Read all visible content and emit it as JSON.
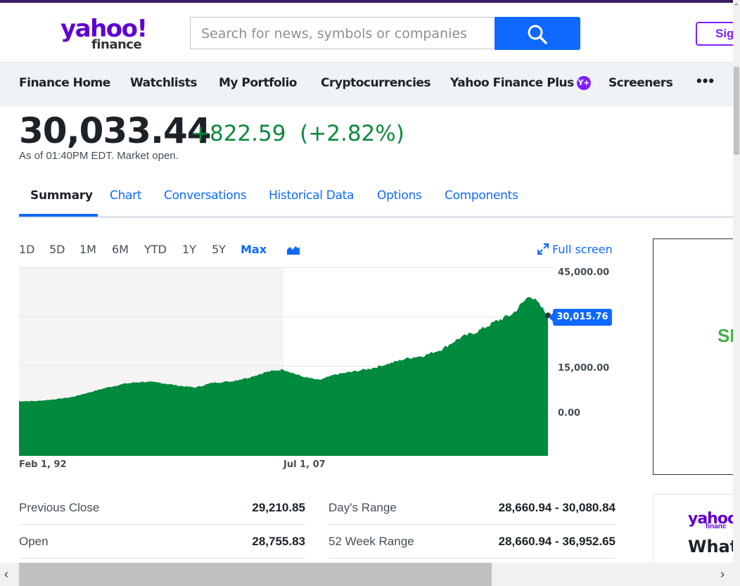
{
  "header": {
    "logo_main": "yahoo!",
    "logo_sub": "finance",
    "search_placeholder": "Search for news, symbols or companies",
    "sign_in_label": "Sig"
  },
  "nav": {
    "items": [
      "Finance Home",
      "Watchlists",
      "My Portfolio",
      "Cryptocurrencies",
      "Yahoo Finance Plus",
      "Screeners"
    ],
    "plus_badge": "Y+",
    "more": "•••"
  },
  "quote": {
    "price": "30,033.44",
    "change": "+822.59",
    "change_pct": "(+2.82%)",
    "as_of": "As of 01:40PM EDT. Market open."
  },
  "tabs": [
    "Summary",
    "Chart",
    "Conversations",
    "Historical Data",
    "Options",
    "Components"
  ],
  "ranges": [
    "1D",
    "5D",
    "1M",
    "6M",
    "YTD",
    "1Y",
    "5Y",
    "Max"
  ],
  "active_range": "Max",
  "fullscreen_label": "Full screen",
  "colors": {
    "accent": "#0f69ff",
    "positive": "#0c8a3e",
    "area_fill": "#008a3e",
    "brand": "#6001d2"
  },
  "chart_data": {
    "type": "area",
    "y_ticks": [
      "45,000.00",
      "15,000.00",
      "0.00"
    ],
    "x_ticks": [
      "Feb 1, 92",
      "Jul 1, 07"
    ],
    "last_value": "30,015.76",
    "series": [
      {
        "x": [
          "1992",
          "1993",
          "1994",
          "1995",
          "1996",
          "1997",
          "1998",
          "1999",
          "2000",
          "2001",
          "2002",
          "2003",
          "2004",
          "2005",
          "2006",
          "2007",
          "2008",
          "2009",
          "2010",
          "2011",
          "2012",
          "2013",
          "2014",
          "2015",
          "2016",
          "2017",
          "2018",
          "2019",
          "2020",
          "2021",
          "2022"
        ],
        "values": [
          3200,
          3300,
          3800,
          4500,
          6000,
          7500,
          8700,
          9300,
          9000,
          8100,
          7500,
          9000,
          9400,
          10600,
          12300,
          13200,
          11000,
          9800,
          11600,
          12500,
          13500,
          15000,
          16600,
          17500,
          19500,
          23000,
          25000,
          28000,
          30500,
          36500,
          30016
        ]
      }
    ]
  },
  "stats": {
    "left": [
      {
        "label": "Previous Close",
        "value": "29,210.85"
      },
      {
        "label": "Open",
        "value": "28,755.83"
      }
    ],
    "right": [
      {
        "label": "Day's Range",
        "value": "28,660.94 - 30,080.84"
      },
      {
        "label": "52 Week Range",
        "value": "28,660.94 - 36,952.65"
      }
    ]
  },
  "ads": {
    "ad1_text": "SI",
    "ad2_logo": "yahoo.",
    "ad2_sub": "financ",
    "ad2_text": "What"
  }
}
